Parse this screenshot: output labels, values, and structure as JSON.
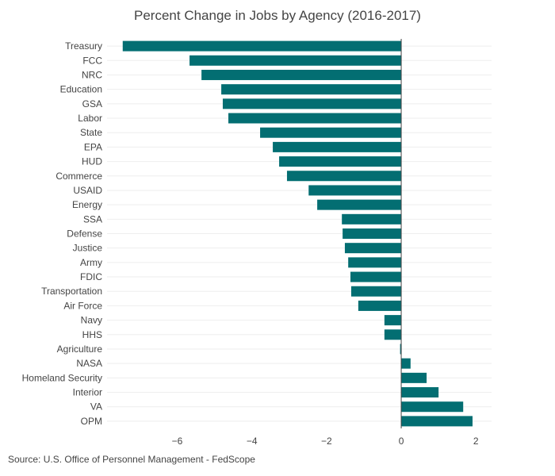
{
  "chart_data": {
    "type": "bar",
    "orientation": "horizontal",
    "title": "Percent Change in Jobs by Agency (2016-2017)",
    "source": "Source: U.S. Office of Personnel Management - FedScope",
    "categories": [
      "Treasury",
      "FCC",
      "NRC",
      "Education",
      "GSA",
      "Labor",
      "State",
      "EPA",
      "HUD",
      "Commerce",
      "USAID",
      "Energy",
      "SSA",
      "Defense",
      "Justice",
      "Army",
      "FDIC",
      "Transportation",
      "Air Force",
      "Navy",
      "HHS",
      "Agriculture",
      "NASA",
      "Homeland Security",
      "Interior",
      "VA",
      "OPM"
    ],
    "values": [
      -7.46,
      -5.67,
      -5.35,
      -4.82,
      -4.78,
      -4.63,
      -3.78,
      -3.44,
      -3.27,
      -3.06,
      -2.48,
      -2.25,
      -1.59,
      -1.57,
      -1.51,
      -1.42,
      -1.36,
      -1.34,
      -1.15,
      -0.45,
      -0.45,
      -0.03,
      0.25,
      0.68,
      1.0,
      1.66,
      1.91
    ],
    "xlim": [
      -7.88,
      2.42
    ],
    "xticks": [
      -6,
      -4,
      -2,
      0,
      2
    ],
    "xtick_labels": [
      "−6",
      "−4",
      "−2",
      "0",
      "2"
    ],
    "grid": "horizontal",
    "bar_color": "#036e72"
  }
}
